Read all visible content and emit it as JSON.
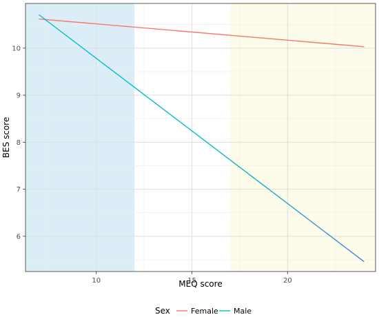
{
  "chart_data": {
    "type": "line",
    "title": "",
    "xlabel": "MEQ score",
    "ylabel": "BES score",
    "xlim": [
      6.3,
      24.6
    ],
    "ylim": [
      5.25,
      10.95
    ],
    "xticks": [
      10,
      15,
      20
    ],
    "yticks": [
      6,
      7,
      8,
      9,
      10
    ],
    "grid": true,
    "background_bands": [
      {
        "x_from": 6.3,
        "x_to": 12.0,
        "color": "#dbeef7"
      },
      {
        "x_from": 17.0,
        "x_to": 24.6,
        "color": "#fdfbea"
      }
    ],
    "series": [
      {
        "name": "Female",
        "color": "#f8766d",
        "x": [
          7,
          24
        ],
        "y": [
          10.62,
          10.03
        ]
      },
      {
        "name": "Male",
        "color": "#00bfc4",
        "x": [
          7,
          24
        ],
        "y": [
          10.71,
          5.46
        ]
      }
    ],
    "legend": {
      "title": "Sex",
      "position": "bottom"
    }
  }
}
